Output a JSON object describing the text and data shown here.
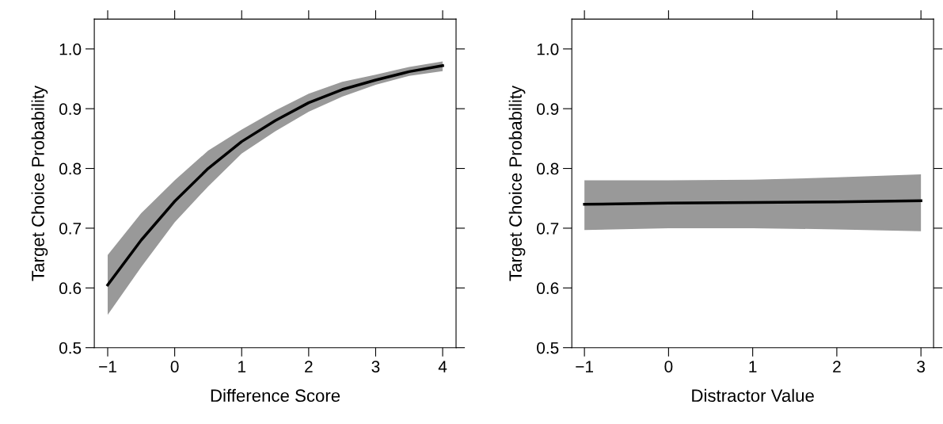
{
  "chart_data": [
    {
      "type": "line",
      "xlabel": "Difference Score",
      "ylabel": "Target Choice Probability",
      "xlim": [
        -1.2,
        4.2
      ],
      "ylim": [
        0.5,
        1.05
      ],
      "xticks": [
        {
          "value": -1,
          "label": "−1"
        },
        0,
        1,
        2,
        3,
        4
      ],
      "yticks": [
        0.5,
        0.6,
        0.7,
        0.8,
        0.9,
        {
          "value": 1,
          "label": "1.0"
        }
      ],
      "grid": false,
      "legend": false,
      "marker": "none",
      "line_style": "solid",
      "series": [
        {
          "color": "#000000",
          "x": [
            -1,
            -0.5,
            0,
            0.5,
            1,
            1.5,
            2,
            2.5,
            3,
            3.5,
            4
          ],
          "values": [
            0.605,
            0.68,
            0.745,
            0.8,
            0.845,
            0.88,
            0.91,
            0.932,
            0.948,
            0.962,
            0.972
          ],
          "lower": [
            0.555,
            0.635,
            0.71,
            0.77,
            0.825,
            0.862,
            0.895,
            0.92,
            0.94,
            0.955,
            0.963
          ],
          "upper": [
            0.655,
            0.725,
            0.78,
            0.83,
            0.865,
            0.897,
            0.925,
            0.945,
            0.957,
            0.97,
            0.979
          ]
        }
      ]
    },
    {
      "type": "line",
      "xlabel": "Distractor Value",
      "ylabel": "Target Choice Probability",
      "xlim": [
        -1.15,
        3.15
      ],
      "ylim": [
        0.5,
        1.05
      ],
      "xticks": [
        {
          "value": -1,
          "label": "−1"
        },
        0,
        1,
        2,
        3
      ],
      "yticks": [
        0.5,
        0.6,
        0.7,
        0.8,
        0.9,
        {
          "value": 1,
          "label": "1.0"
        }
      ],
      "grid": false,
      "legend": false,
      "marker": "none",
      "line_style": "solid",
      "series": [
        {
          "color": "#000000",
          "x": [
            -1,
            0,
            1,
            2,
            3
          ],
          "values": [
            0.74,
            0.742,
            0.743,
            0.744,
            0.746
          ],
          "lower": [
            0.697,
            0.7,
            0.7,
            0.698,
            0.695
          ],
          "upper": [
            0.78,
            0.78,
            0.781,
            0.785,
            0.79
          ]
        }
      ]
    }
  ]
}
